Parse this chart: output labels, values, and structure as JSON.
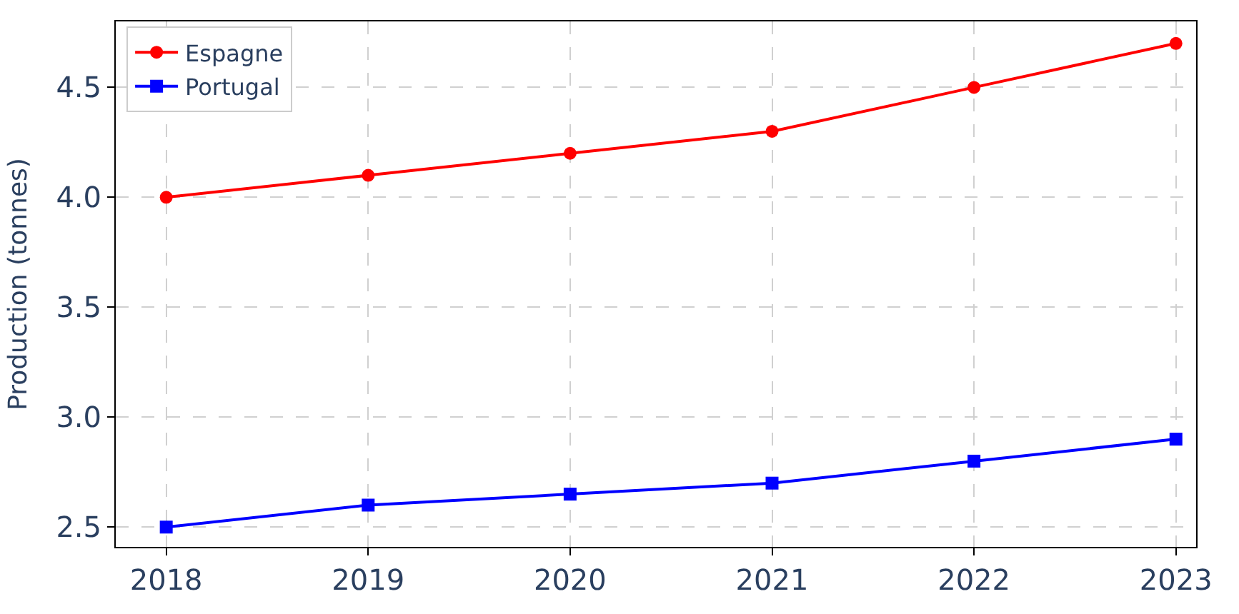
{
  "chart_data": {
    "type": "line",
    "ylabel": "Production (tonnes)",
    "x": [
      2018,
      2019,
      2020,
      2021,
      2022,
      2023
    ],
    "series": [
      {
        "name": "Espagne",
        "color": "#ff0000",
        "marker": "circle",
        "values": [
          4.0,
          4.1,
          4.2,
          4.3,
          4.5,
          4.7
        ]
      },
      {
        "name": "Portugal",
        "color": "#0000ff",
        "marker": "square",
        "values": [
          2.5,
          2.6,
          2.65,
          2.7,
          2.8,
          2.9
        ]
      }
    ],
    "xlim": [
      2017.75,
      2023.1
    ],
    "xticks": [
      2018,
      2019,
      2020,
      2021,
      2022,
      2023
    ],
    "ylim": [
      2.41,
      4.8
    ],
    "yticks": [
      2.5,
      {
        "value": 3,
        "label": "3.0"
      },
      3.5,
      {
        "value": 4,
        "label": "4.0"
      },
      4.5
    ],
    "grid": true,
    "legend": "top left",
    "line_style": "solid"
  }
}
